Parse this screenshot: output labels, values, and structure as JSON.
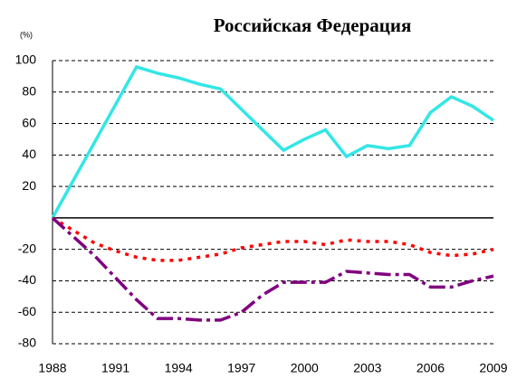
{
  "chart_data": {
    "type": "line",
    "title": "Российская Федерация",
    "y_label": "(%)",
    "x": [
      1988,
      1989,
      1990,
      1991,
      1992,
      1993,
      1994,
      1995,
      1996,
      1997,
      1998,
      1999,
      2000,
      2001,
      2002,
      2003,
      2004,
      2005,
      2006,
      2007,
      2008,
      2009
    ],
    "series": [
      {
        "color": "#33e6e6",
        "style": "solid",
        "values": [
          0,
          24,
          48,
          72,
          96,
          92,
          89,
          85,
          82,
          69,
          56,
          43,
          50,
          56,
          39,
          46,
          44,
          46,
          67,
          77,
          71,
          62
        ]
      },
      {
        "color": "#ff0000",
        "style": "dotted",
        "values": [
          0,
          -8,
          -16,
          -21,
          -25,
          -27,
          -27,
          -25,
          -23,
          -19,
          -17,
          -15,
          -15,
          -17,
          -14,
          -15,
          -15,
          -17,
          -22,
          -24,
          -23,
          -20
        ]
      },
      {
        "color": "#800080",
        "style": "dashdot",
        "values": [
          0,
          -12,
          -24,
          -38,
          -52,
          -64,
          -64,
          -65,
          -65,
          -60,
          -49,
          -41,
          -41,
          -41,
          -34,
          -35,
          -36,
          -36,
          -44,
          -44,
          -40,
          -37
        ]
      }
    ],
    "xlim": [
      1988,
      2009
    ],
    "xticks": [
      1988,
      1991,
      1994,
      1997,
      2000,
      2003,
      2006,
      2009
    ],
    "ylim": [
      -80,
      100
    ],
    "yticks": [
      100,
      80,
      60,
      40,
      20,
      -20,
      -40,
      -60,
      -80
    ],
    "grid": true
  }
}
